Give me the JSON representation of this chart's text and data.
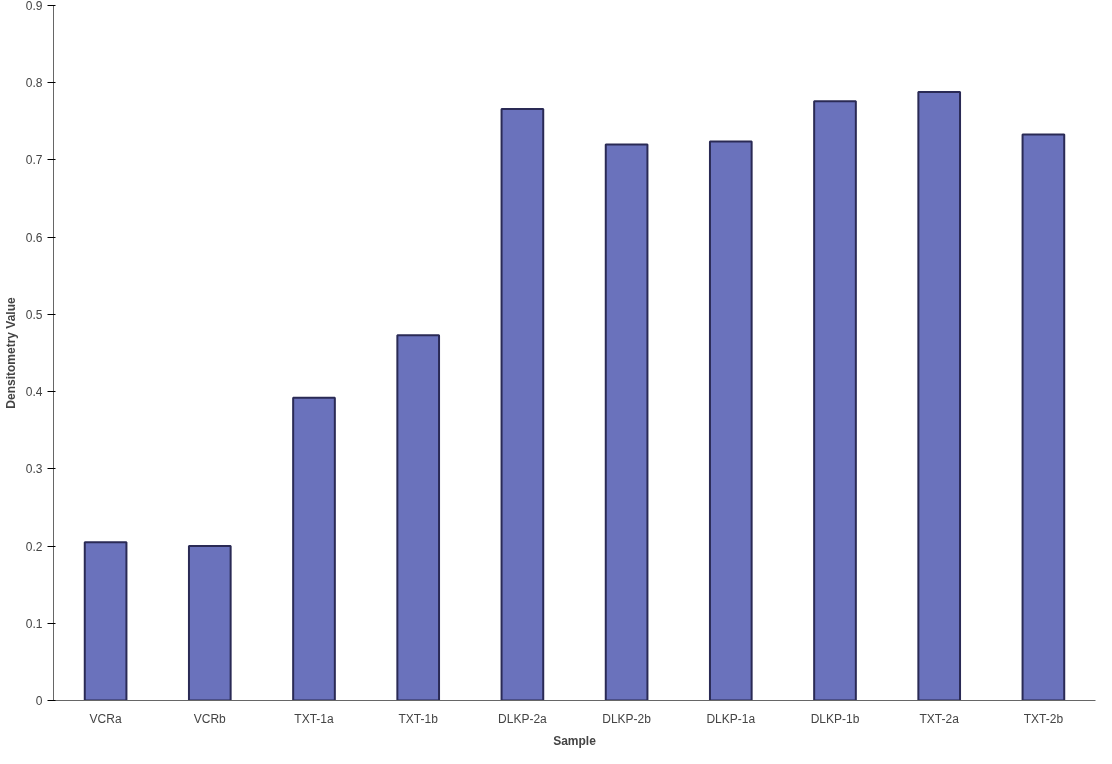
{
  "chart_data": {
    "type": "bar",
    "xlabel": "Sample",
    "ylabel": "Densitometry Value",
    "categories": [
      "VCRa",
      "VCRb",
      "TXT-1a",
      "TXT-1b",
      "DLKP-2a",
      "DLKP-2b",
      "DLKP-1a",
      "DLKP-1b",
      "TXT-2a",
      "TXT-2b"
    ],
    "values": [
      0.205,
      0.2,
      0.392,
      0.473,
      0.766,
      0.72,
      0.724,
      0.776,
      0.788,
      0.733
    ],
    "color": "#6a72bc",
    "ylim": [
      0,
      0.9
    ],
    "yticks": [
      {
        "value": 0,
        "label": "0"
      },
      0.1,
      0.2,
      0.3,
      0.4,
      0.5,
      0.6,
      0.7,
      0.8,
      0.9
    ],
    "grid": false
  }
}
